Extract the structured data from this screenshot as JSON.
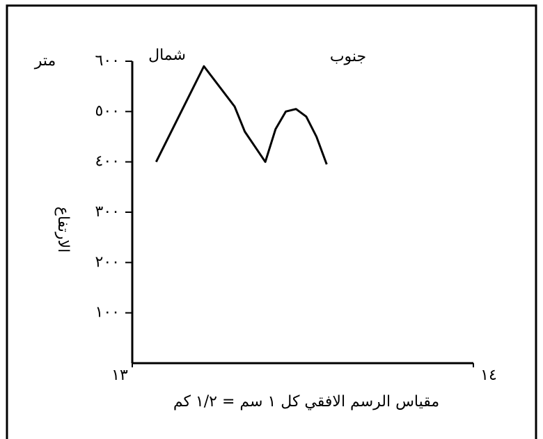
{
  "chart_data": {
    "type": "line",
    "xlabel": "مقياس الرسم الافقي كل ١ سم = ١/٢ كم",
    "ylabel": "الارتفاع",
    "y_unit": "متر",
    "left_label": "شمال",
    "right_label": "جنوب",
    "x": [
      13.07,
      13.21,
      13.3,
      13.33,
      13.36,
      13.39,
      13.42,
      13.45,
      13.48,
      13.51,
      13.54,
      13.57
    ],
    "series": [
      {
        "color": "#000000",
        "values": [
          400,
          590,
          510,
          460,
          430,
          400,
          465,
          500,
          505,
          490,
          450,
          395
        ]
      }
    ],
    "xlim": [
      13,
      14
    ],
    "xticks": [
      {
        "value": 13,
        "label": "١٣"
      },
      {
        "value": 14,
        "label": "١٤"
      }
    ],
    "ylim": [
      0,
      600
    ],
    "yticks": [
      {
        "value": 100,
        "label": "١٠٠"
      },
      {
        "value": 200,
        "label": "٢٠٠"
      },
      {
        "value": 300,
        "label": "٣٠٠"
      },
      {
        "value": 400,
        "label": "٤٠٠"
      },
      {
        "value": 500,
        "label": "٥٠٠"
      },
      {
        "value": 600,
        "label": "٦٠٠"
      }
    ],
    "grid": false
  }
}
